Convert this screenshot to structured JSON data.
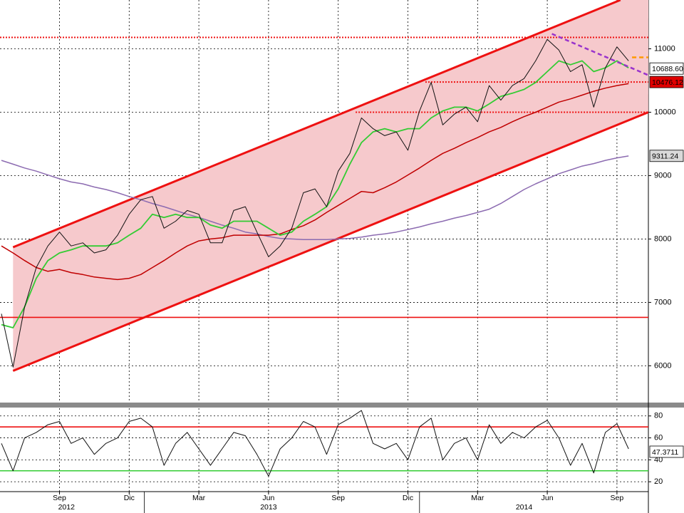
{
  "chart_data": [
    {
      "type": "line",
      "ylim": [
        5420,
        11770
      ],
      "yticks": [
        6000,
        7000,
        8000,
        9000,
        10000,
        11000
      ],
      "grid": true,
      "series": [
        {
          "color": "#8c6bb1",
          "width": 1.5,
          "values": [
            9240,
            9180,
            9120,
            9070,
            9010,
            8950,
            8900,
            8870,
            8820,
            8780,
            8730,
            8670,
            8620,
            8560,
            8510,
            8450,
            8390,
            8340,
            8280,
            8220,
            8170,
            8110,
            8080,
            8040,
            8010,
            8000,
            7990,
            7990,
            7990,
            8000,
            8010,
            8030,
            8060,
            8080,
            8110,
            8150,
            8190,
            8240,
            8280,
            8330,
            8370,
            8420,
            8470,
            8560,
            8670,
            8780,
            8870,
            8950,
            9030,
            9090,
            9150,
            9190,
            9240,
            9280,
            9310
          ]
        },
        {
          "color": "#c00000",
          "width": 1.5,
          "values": [
            7890,
            7780,
            7660,
            7550,
            7490,
            7520,
            7470,
            7440,
            7400,
            7380,
            7360,
            7380,
            7440,
            7550,
            7660,
            7780,
            7890,
            7970,
            8000,
            8020,
            8060,
            8060,
            8060,
            8060,
            8080,
            8150,
            8210,
            8300,
            8420,
            8530,
            8640,
            8750,
            8730,
            8810,
            8900,
            9010,
            9120,
            9240,
            9350,
            9430,
            9520,
            9600,
            9690,
            9760,
            9850,
            9930,
            10000,
            10080,
            10160,
            10210,
            10270,
            10330,
            10380,
            10420,
            10450
          ]
        },
        {
          "color": "#33cc33",
          "width": 1.8,
          "values": [
            6650,
            6600,
            6930,
            7380,
            7660,
            7780,
            7830,
            7890,
            7890,
            7890,
            7940,
            8060,
            8170,
            8390,
            8340,
            8390,
            8340,
            8340,
            8220,
            8170,
            8280,
            8280,
            8280,
            8170,
            8060,
            8110,
            8280,
            8390,
            8510,
            8790,
            9180,
            9520,
            9690,
            9740,
            9690,
            9740,
            9740,
            9910,
            10020,
            10080,
            10080,
            10020,
            10130,
            10250,
            10300,
            10360,
            10470,
            10640,
            10810,
            10750,
            10810,
            10640,
            10700,
            10810,
            10700
          ]
        },
        {
          "color": "#111111",
          "width": 1,
          "values": [
            6820,
            5980,
            6930,
            7550,
            7890,
            8110,
            7890,
            7940,
            7780,
            7830,
            8060,
            8390,
            8620,
            8670,
            8170,
            8280,
            8450,
            8390,
            7940,
            7940,
            8450,
            8510,
            8110,
            7720,
            7890,
            8170,
            8730,
            8790,
            8510,
            9070,
            9350,
            9910,
            9740,
            9630,
            9690,
            9400,
            10020,
            10470,
            9800,
            9970,
            10080,
            9850,
            10420,
            10190,
            10420,
            10530,
            10810,
            11150,
            10980,
            10640,
            10750,
            10080,
            10700,
            11030,
            10810
          ]
        }
      ],
      "channel": {
        "color": "#ee1111",
        "fill": "#f6c9cc",
        "upper": {
          "x": [
            1,
            53.3
          ],
          "y": [
            7870,
            11770
          ]
        },
        "lower": {
          "x": [
            1,
            55.7
          ],
          "y": [
            5920,
            10000
          ]
        }
      },
      "hlines": [
        {
          "value": 6764,
          "color": "#ee1111",
          "dash": false
        },
        {
          "value": 11180,
          "color": "#ee1111",
          "dash": true
        },
        {
          "value": 10476,
          "color": "#ee1111",
          "dash": true,
          "from": 36.5
        },
        {
          "value": 10000,
          "color": "#ee1111",
          "dash": true,
          "from": 30.5
        }
      ],
      "trendlines": [
        {
          "x": [
            47.4,
            55.7
          ],
          "y": [
            11236,
            10584
          ],
          "color": "#9933cc"
        },
        {
          "x": [
            54.3,
            55.7
          ],
          "y": [
            10865,
            10865
          ],
          "color": "#ff9900"
        }
      ],
      "markers": [
        {
          "value": 10688.6,
          "label": "10688.60",
          "color": "#ffffff",
          "text_color": "#000000"
        },
        {
          "value": 10476.12,
          "label": "10476.12",
          "color": "#e00000",
          "text_color": "#ffffff"
        },
        {
          "value": 9311.24,
          "label": "9311.24",
          "color": "#d9d9d9",
          "text_color": "#000000"
        }
      ]
    },
    {
      "type": "line",
      "ylim": [
        11,
        87
      ],
      "yticks": [
        20,
        40,
        60,
        80
      ],
      "grid": true,
      "categories": [
        null,
        null,
        null,
        null,
        null,
        "Sep",
        null,
        null,
        null,
        null,
        null,
        "Dic",
        null,
        null,
        null,
        null,
        null,
        "Mar",
        null,
        null,
        null,
        null,
        null,
        "Jun",
        null,
        null,
        null,
        null,
        null,
        "Sep",
        null,
        null,
        null,
        null,
        null,
        "Dic",
        null,
        null,
        null,
        null,
        null,
        "Mar",
        null,
        null,
        null,
        null,
        null,
        "Jun",
        null,
        null,
        null,
        null,
        null,
        "Sep",
        null
      ],
      "x_group_labels": [
        "2012",
        "2013",
        "2014"
      ],
      "series": [
        {
          "color": "#111111",
          "width": 1,
          "values": [
            55,
            30,
            60,
            65,
            72,
            75,
            55,
            60,
            45,
            55,
            60,
            75,
            78,
            70,
            35,
            55,
            65,
            50,
            35,
            50,
            65,
            62,
            45,
            25,
            50,
            60,
            75,
            70,
            45,
            72,
            78,
            85,
            55,
            50,
            55,
            40,
            70,
            78,
            40,
            55,
            60,
            40,
            72,
            55,
            65,
            60,
            70,
            76,
            60,
            35,
            55,
            28,
            65,
            73,
            50
          ]
        }
      ],
      "hlines": [
        {
          "value": 70,
          "color": "#ee1111",
          "dash": false
        },
        {
          "value": 30,
          "color": "#33cc33",
          "dash": false
        }
      ],
      "markers": [
        {
          "value": 47.3711,
          "label": "47.3711",
          "color": "#ffffff",
          "text_color": "#000000"
        }
      ]
    }
  ]
}
